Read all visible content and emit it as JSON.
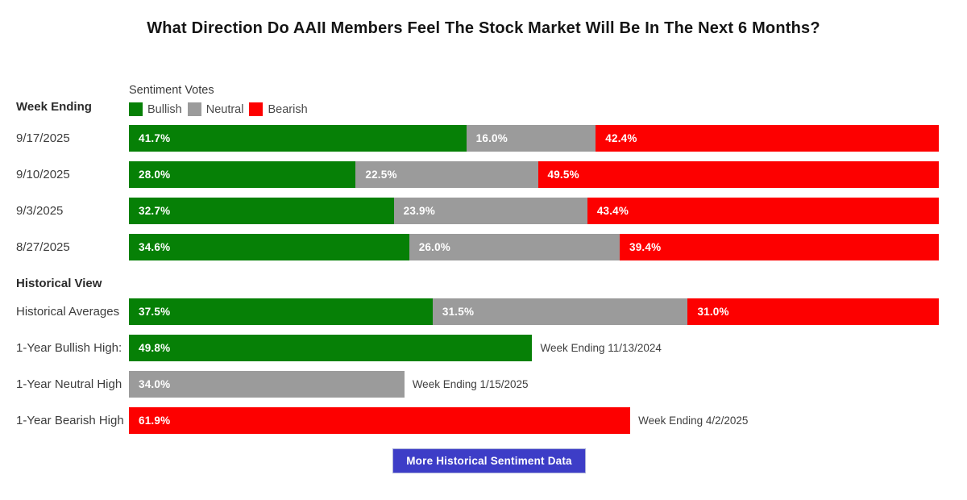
{
  "title": "What Direction Do AAII Members Feel The Stock Market Will Be In The Next 6 Months?",
  "sections": {
    "weekly_header": "Week Ending",
    "historical_header": "Historical View"
  },
  "legend": {
    "title": "Sentiment Votes",
    "items": [
      {
        "key": "bullish",
        "label": "Bullish"
      },
      {
        "key": "neutral",
        "label": "Neutral"
      },
      {
        "key": "bearish",
        "label": "Bearish"
      }
    ]
  },
  "colors": {
    "bullish": "#068006",
    "neutral": "#9b9b9b",
    "bearish": "#fd0000",
    "button": "#3d3dc7",
    "value_label": "#ffffff"
  },
  "chart_data": {
    "type": "bar",
    "orientation": "horizontal",
    "stacked": true,
    "unit": "%",
    "series_names": [
      "Bullish",
      "Neutral",
      "Bearish"
    ],
    "weekly_rows": [
      {
        "label": "9/17/2025",
        "bullish": 41.7,
        "neutral": 16.0,
        "bearish": 42.4
      },
      {
        "label": "9/10/2025",
        "bullish": 28.0,
        "neutral": 22.5,
        "bearish": 49.5
      },
      {
        "label": "9/3/2025",
        "bullish": 32.7,
        "neutral": 23.9,
        "bearish": 43.4
      },
      {
        "label": "8/27/2025",
        "bullish": 34.6,
        "neutral": 26.0,
        "bearish": 39.4
      }
    ],
    "historical_rows": [
      {
        "label": "Historical Averages",
        "kind": "stacked",
        "bullish": 37.5,
        "neutral": 31.5,
        "bearish": 31.0
      },
      {
        "label": "1-Year Bullish High:",
        "kind": "single",
        "series": "bullish",
        "value": 49.8,
        "annotation": "Week Ending 11/13/2024"
      },
      {
        "label": "1-Year Neutral High",
        "kind": "single",
        "series": "neutral",
        "value": 34.0,
        "annotation": "Week Ending 1/15/2025"
      },
      {
        "label": "1-Year Bearish High",
        "kind": "single",
        "series": "bearish",
        "value": 61.9,
        "annotation": "Week Ending 4/2/2025"
      }
    ]
  },
  "button": {
    "label": "More Historical Sentiment Data"
  }
}
